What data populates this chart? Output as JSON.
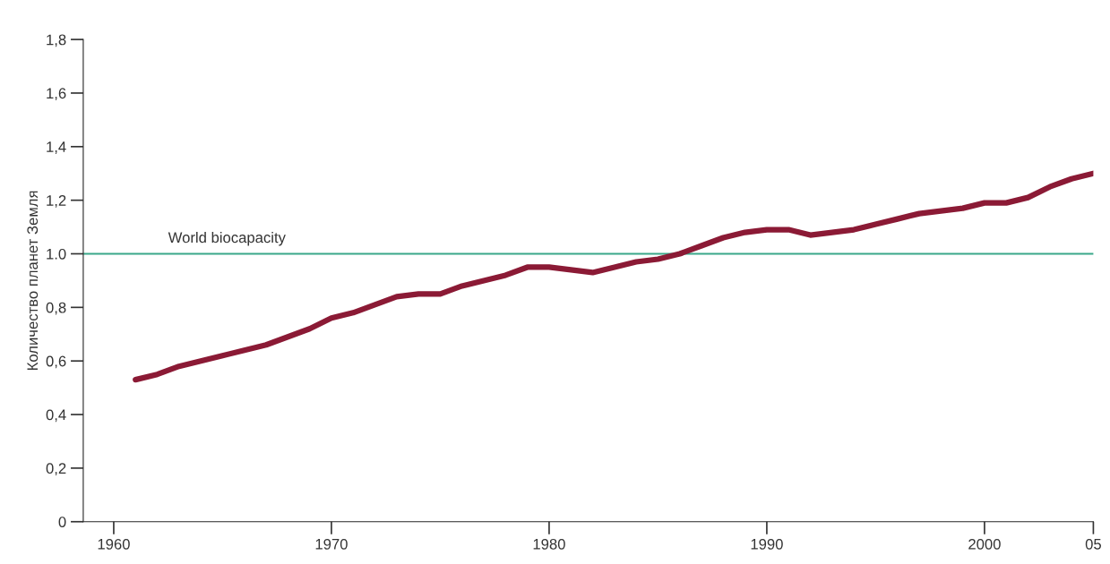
{
  "chart_data": {
    "type": "line",
    "ylabel": "Количество планет Земля",
    "x": [
      1961,
      1962,
      1963,
      1964,
      1965,
      1966,
      1967,
      1968,
      1969,
      1970,
      1971,
      1972,
      1973,
      1974,
      1975,
      1976,
      1977,
      1978,
      1979,
      1980,
      1981,
      1982,
      1983,
      1984,
      1985,
      1986,
      1987,
      1988,
      1989,
      1990,
      1991,
      1992,
      1993,
      1994,
      1995,
      1996,
      1997,
      1998,
      1999,
      2000,
      2001,
      2002,
      2003,
      2004,
      2005
    ],
    "series": [
      {
        "color": "#8b1a35",
        "values": [
          0.53,
          0.55,
          0.58,
          0.6,
          0.62,
          0.64,
          0.66,
          0.69,
          0.72,
          0.76,
          0.78,
          0.81,
          0.84,
          0.85,
          0.85,
          0.88,
          0.9,
          0.92,
          0.95,
          0.95,
          0.94,
          0.93,
          0.95,
          0.97,
          0.98,
          1.0,
          1.03,
          1.06,
          1.08,
          1.09,
          1.09,
          1.07,
          1.08,
          1.09,
          1.11,
          1.13,
          1.15,
          1.16,
          1.17,
          1.19,
          1.19,
          1.21,
          1.25,
          1.28,
          1.3
        ]
      }
    ],
    "xlim": [
      1958.6,
      2005
    ],
    "xticks": [
      1960,
      1970,
      1980,
      1990,
      2000,
      {
        "value": 2005,
        "label": "05"
      }
    ],
    "ylim": [
      0,
      1.8
    ],
    "yticks": [
      0,
      {
        "value": 0.2,
        "label": "0,2"
      },
      {
        "value": 0.4,
        "label": "0,4"
      },
      {
        "value": 0.6,
        "label": "0,6"
      },
      {
        "value": 0.8,
        "label": "0,8"
      },
      {
        "value": 1.0,
        "label": "1.0"
      },
      {
        "value": 1.2,
        "label": "1,2"
      },
      {
        "value": 1.4,
        "label": "1,4"
      },
      {
        "value": 1.6,
        "label": "1,6"
      },
      {
        "value": 1.8,
        "label": "1,8"
      }
    ],
    "ref_lines": [
      {
        "axis": "y",
        "value": 1.0,
        "label": "World biocapacity",
        "color": "#3aa88a"
      }
    ],
    "grid": false,
    "legend": false,
    "marker": "none",
    "line_style": "solid"
  }
}
